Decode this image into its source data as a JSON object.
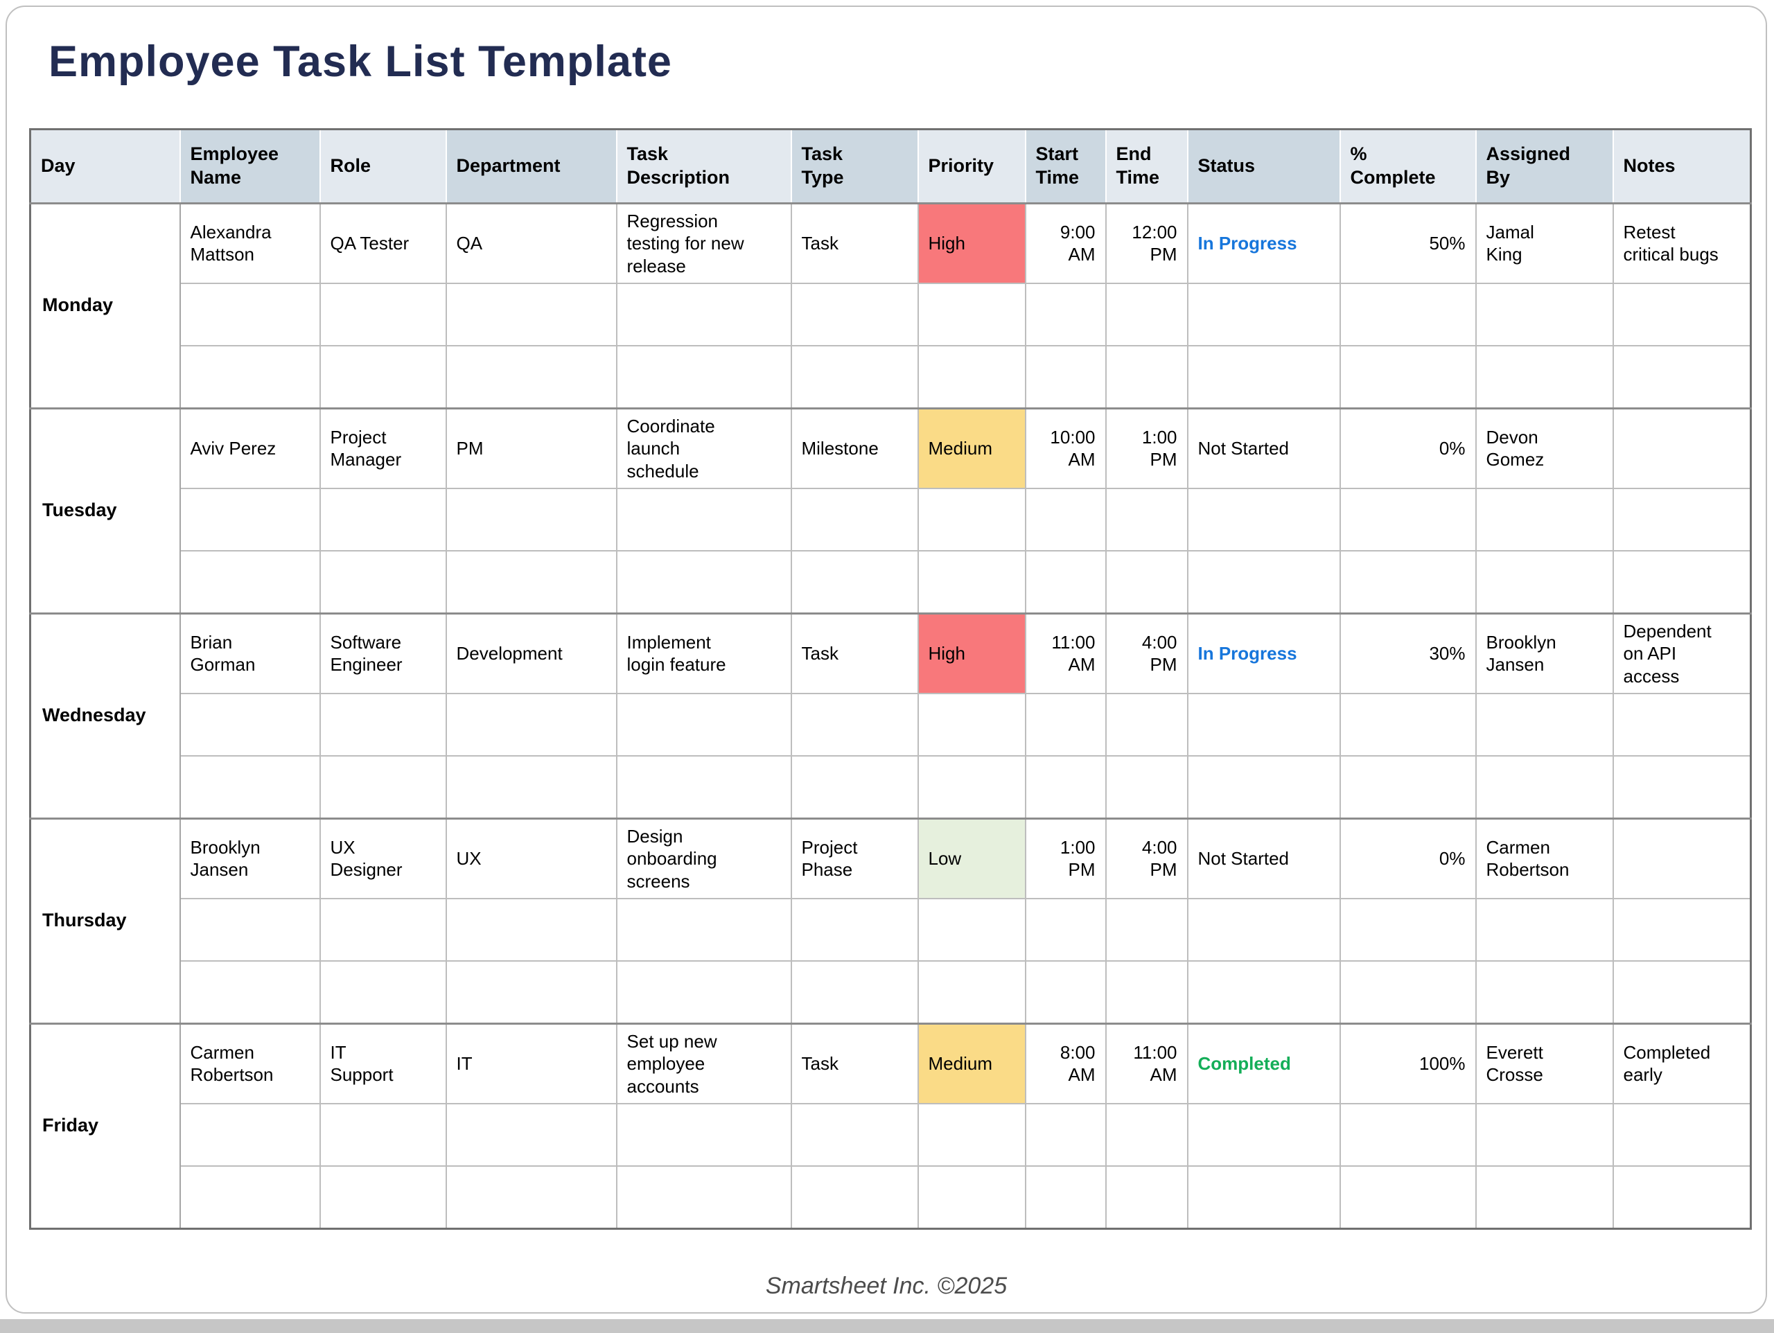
{
  "page": {
    "title": "Employee Task List Template",
    "footer": "Smartsheet Inc. ©2025"
  },
  "colors": {
    "title": "#222C52",
    "header_light": "#E3E9EF",
    "header_dark": "#CCD8E1",
    "footer_text": "#4C4C4C"
  },
  "table": {
    "columns": [
      {
        "key": "day",
        "label": "Day"
      },
      {
        "key": "employee_name",
        "label": "Employee\nName"
      },
      {
        "key": "role",
        "label": "Role"
      },
      {
        "key": "department",
        "label": "Department"
      },
      {
        "key": "task_description",
        "label": "Task\nDescription"
      },
      {
        "key": "task_type",
        "label": "Task\nType"
      },
      {
        "key": "priority",
        "label": "Priority"
      },
      {
        "key": "start_time",
        "label": "Start\nTime"
      },
      {
        "key": "end_time",
        "label": "End\nTime"
      },
      {
        "key": "status",
        "label": "Status"
      },
      {
        "key": "percent_complete",
        "label": "%\nComplete"
      },
      {
        "key": "assigned_by",
        "label": "Assigned\nBy"
      },
      {
        "key": "notes",
        "label": "Notes"
      }
    ],
    "priority_colors": {
      "High": "#F8787B",
      "Medium": "#FADB87",
      "Low": "#E6F0DD"
    },
    "status_styles": {
      "In Progress": {
        "color": "#1776DB",
        "bold": true
      },
      "Not Started": {
        "color": "#000000",
        "bold": false
      },
      "Completed": {
        "color": "#14AE58",
        "bold": true
      }
    },
    "days": [
      {
        "day": "Monday",
        "empty_rows": 2,
        "task": {
          "employee_name": "Alexandra Mattson",
          "role": "QA Tester",
          "department": "QA",
          "task_description": "Regression testing for new release",
          "task_type": "Task",
          "priority": "High",
          "start_time": "9:00 AM",
          "end_time": "12:00 PM",
          "status": "In Progress",
          "percent_complete": "50%",
          "assigned_by": "Jamal King",
          "notes": "Retest critical bugs"
        }
      },
      {
        "day": "Tuesday",
        "empty_rows": 2,
        "task": {
          "employee_name": "Aviv Perez",
          "role": "Project Manager",
          "department": "PM",
          "task_description": "Coordinate launch schedule",
          "task_type": "Milestone",
          "priority": "Medium",
          "start_time": "10:00 AM",
          "end_time": "1:00 PM",
          "status": "Not Started",
          "percent_complete": "0%",
          "assigned_by": "Devon Gomez",
          "notes": ""
        }
      },
      {
        "day": "Wednesday",
        "empty_rows": 2,
        "task": {
          "employee_name": "Brian Gorman",
          "role": "Software Engineer",
          "department": "Development",
          "task_description": "Implement login feature",
          "task_type": "Task",
          "priority": "High",
          "start_time": "11:00 AM",
          "end_time": "4:00 PM",
          "status": "In Progress",
          "percent_complete": "30%",
          "assigned_by": "Brooklyn Jansen",
          "notes": "Dependent on API access"
        }
      },
      {
        "day": "Thursday",
        "empty_rows": 2,
        "task": {
          "employee_name": "Brooklyn Jansen",
          "role": "UX Designer",
          "department": "UX",
          "task_description": "Design onboarding screens",
          "task_type": "Project Phase",
          "priority": "Low",
          "start_time": "1:00 PM",
          "end_time": "4:00 PM",
          "status": "Not Started",
          "percent_complete": "0%",
          "assigned_by": "Carmen Robertson",
          "notes": ""
        }
      },
      {
        "day": "Friday",
        "empty_rows": 2,
        "task": {
          "employee_name": "Carmen Robertson",
          "role": "IT Support",
          "department": "IT",
          "task_description": "Set up new employee accounts",
          "task_type": "Task",
          "priority": "Medium",
          "start_time": "8:00 AM",
          "end_time": "11:00 AM",
          "status": "Completed",
          "percent_complete": "100%",
          "assigned_by": "Everett Crosse",
          "notes": "Completed early"
        }
      }
    ]
  }
}
